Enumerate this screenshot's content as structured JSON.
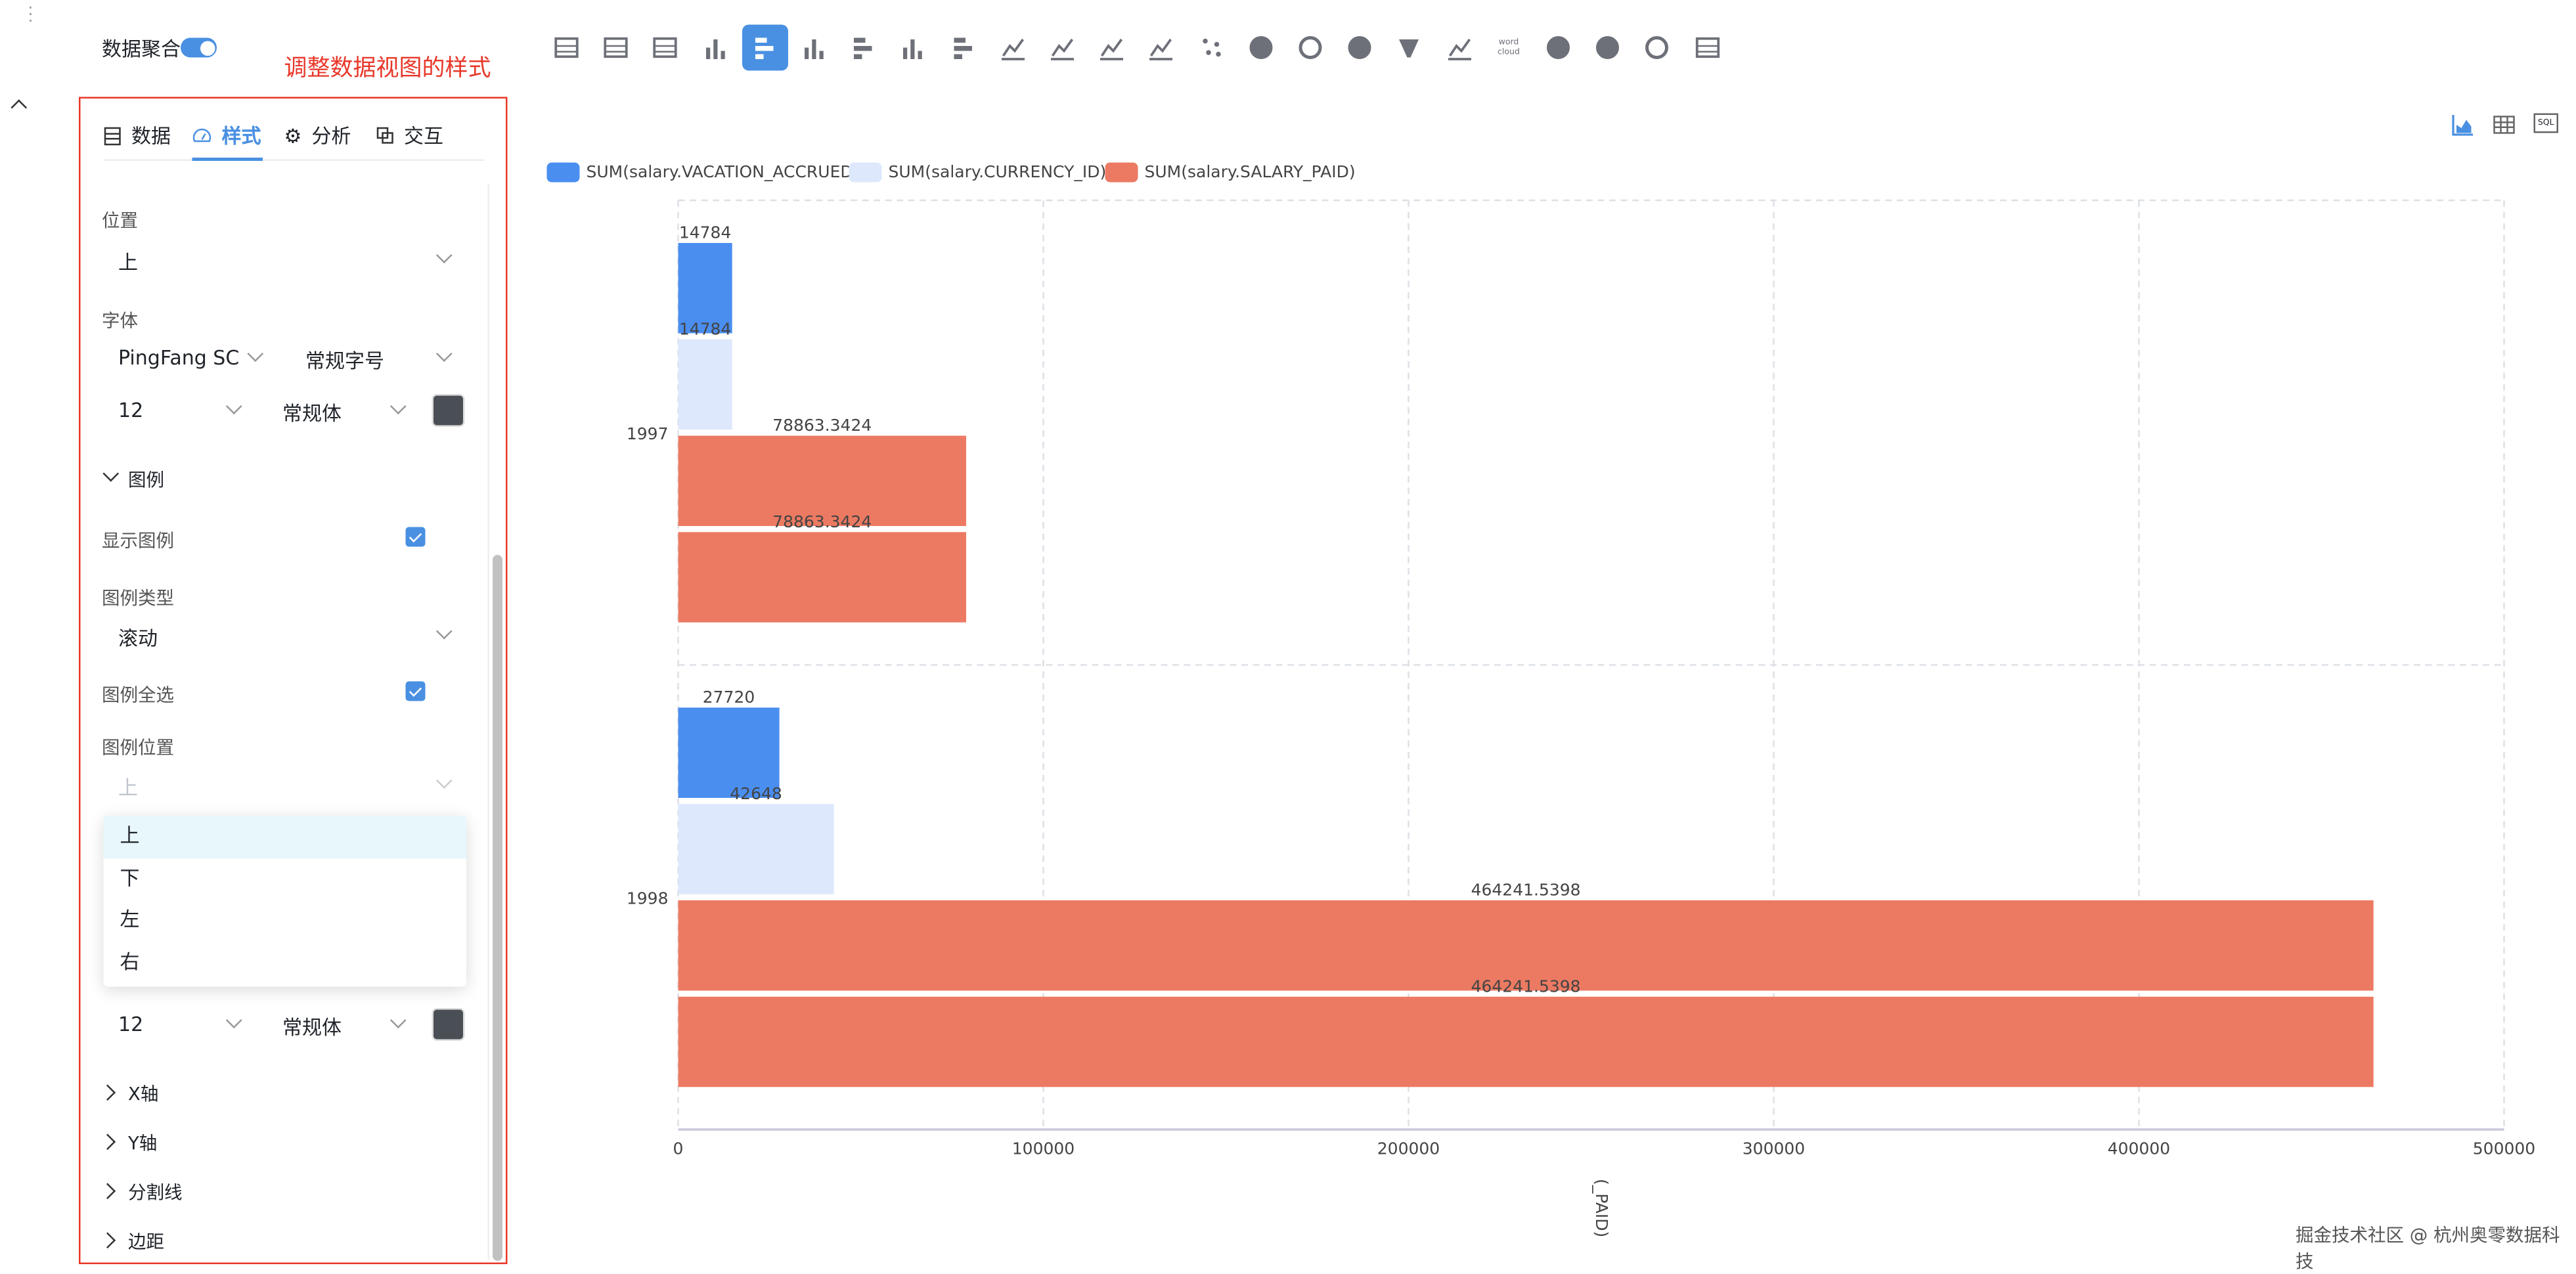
{
  "top": {
    "aggregate_label": "数据聚合",
    "aggregate_on": true,
    "annotation": "调整数据视图的样式"
  },
  "toolbar": {
    "selected_index": 4,
    "icons": [
      "table-icon",
      "pivot-table-icon",
      "number-card-icon",
      "column-chart-icon",
      "horizontal-bar-chart-icon",
      "grouped-column-icon",
      "horizontal-stacked-bar-icon",
      "stacked-column-icon",
      "percent-bar-icon",
      "waterfall-icon",
      "line-chart-icon",
      "area-chart-icon",
      "stacked-area-icon",
      "scatter-icon",
      "pie-chart-icon",
      "donut-chart-icon",
      "rose-chart-icon",
      "funnel-icon",
      "combo-chart-icon",
      "word-cloud-icon",
      "map-icon",
      "globe-icon",
      "gauge-icon",
      "rich-text-icon"
    ],
    "word_cloud_text": "word cloud"
  },
  "panel": {
    "tabs": [
      {
        "label": "数据",
        "icon": "data-list-icon"
      },
      {
        "label": "样式",
        "icon": "dashboard-icon",
        "active": true
      },
      {
        "label": "分析",
        "icon": "gear-icon"
      },
      {
        "label": "交互",
        "icon": "interaction-icon"
      }
    ],
    "position_label": "位置",
    "position_value": "上",
    "font_label": "字体",
    "font_family": "PingFang SC",
    "font_size_type": "常规字号",
    "font_size": "12",
    "font_weight": "常规体",
    "font_color": "#4a4f56",
    "legend_section": "图例",
    "show_legend_label": "显示图例",
    "show_legend": true,
    "legend_type_label": "图例类型",
    "legend_type_value": "滚动",
    "legend_select_all_label": "图例全选",
    "legend_select_all": true,
    "legend_position_label": "图例位置",
    "legend_position_value": "上",
    "legend_position_options": [
      "上",
      "下",
      "左",
      "右"
    ],
    "legend_font_size": "12",
    "legend_font_weight": "常规体",
    "sections": [
      "X轴",
      "Y轴",
      "分割线",
      "边距"
    ]
  },
  "view_icons": [
    "chart-view-icon",
    "table-view-icon",
    "sql-view-icon"
  ],
  "sql_label": "SQL",
  "watermark": "掘金技术社区 @ 杭州奥零数据科技",
  "chart_data": {
    "type": "bar",
    "orientation": "horizontal",
    "categories": [
      "1997",
      "1998"
    ],
    "legend": [
      {
        "name": "SUM(salary.VACATION_ACCRUED)",
        "color": "#4a8ef0"
      },
      {
        "name": "SUM(salary.CURRENCY_ID)",
        "color": "#dde8fc"
      },
      {
        "name": "SUM(salary.SALARY_PAID)",
        "color": "#ec7a62"
      }
    ],
    "series": [
      {
        "name": "SUM(salary.VACATION_ACCRUED)",
        "color": "#4a8ef0",
        "values": [
          14784,
          27720
        ],
        "labels": [
          "14784",
          "27720"
        ]
      },
      {
        "name": "SUM(salary.CURRENCY_ID)",
        "color": "#dde8fc",
        "values": [
          14784,
          42648
        ],
        "labels": [
          "14784",
          "42648"
        ]
      },
      {
        "name": "SUM(salary.SALARY_PAID)",
        "color": "#ec7a62",
        "values": [
          78863.3424,
          464241.5398
        ],
        "labels": [
          "78863.3424",
          "464241.5398"
        ]
      },
      {
        "name": "SUM(salary.SALARY_PAID)",
        "color": "#ec7a62",
        "values": [
          78863.3424,
          464241.5398
        ],
        "labels": [
          "78863.3424",
          "464241.5398"
        ]
      }
    ],
    "xlim": [
      0,
      500000
    ],
    "xticks": [
      "0",
      "100000",
      "200000",
      "300000",
      "400000",
      "500000"
    ],
    "xlabel": "(_PAID)",
    "grid": true,
    "legend_position": "top-left"
  }
}
